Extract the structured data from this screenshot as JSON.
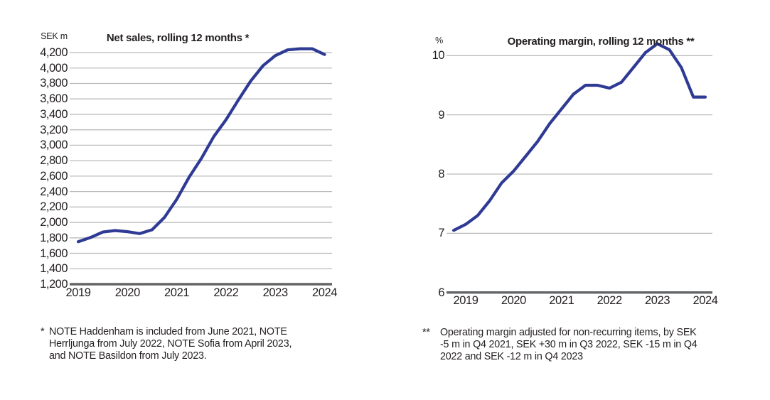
{
  "page": {
    "background": "#ffffff"
  },
  "chart_data": [
    {
      "type": "line",
      "title": "Net sales, rolling 12 months *",
      "grid": "horizontal",
      "legend_position": "none",
      "colors": {
        "line": "#2e3a94",
        "grid": "#babbbd",
        "axis": "#636466",
        "text": "#231f20"
      },
      "y_axis": {
        "unit": "SEK m",
        "min": 1200,
        "max": 4200,
        "step": 200,
        "tick_labels": [
          "4,200",
          "4,000",
          "3,800",
          "3,600",
          "3,400",
          "3,200",
          "3,000",
          "2,800",
          "2,600",
          "2,400",
          "2,200",
          "2,000",
          "1,800",
          "1,600",
          "1,400",
          "1,200"
        ]
      },
      "x_axis": {
        "tick_labels": [
          "2019",
          "2020",
          "2021",
          "2022",
          "2023",
          "2024"
        ]
      },
      "series": [
        {
          "name": "Net sales rolling 12 months (SEK m)",
          "x": [
            2019.0,
            2019.25,
            2019.5,
            2019.75,
            2020.0,
            2020.25,
            2020.5,
            2020.75,
            2021.0,
            2021.25,
            2021.5,
            2021.75,
            2022.0,
            2022.25,
            2022.5,
            2022.75,
            2023.0,
            2023.25,
            2023.5,
            2023.75,
            2024.0
          ],
          "y": [
            1750,
            1805,
            1875,
            1895,
            1880,
            1855,
            1905,
            2065,
            2300,
            2585,
            2830,
            3110,
            3330,
            3585,
            3830,
            4030,
            4160,
            4235,
            4250,
            4250,
            4175
          ]
        }
      ],
      "footnote": {
        "marker": "*",
        "lines": [
          "NOTE Haddenham is included from June 2021, NOTE",
          "Herrljunga from July 2022, NOTE Sofia from April 2023,",
          "and NOTE Basildon from July 2023."
        ]
      }
    },
    {
      "type": "line",
      "title": "Operating margin, rolling 12 months **",
      "grid": "horizontal",
      "legend_position": "none",
      "colors": {
        "line": "#2e3a94",
        "grid": "#babbbd",
        "axis": "#636466",
        "text": "#231f20"
      },
      "y_axis": {
        "unit": "%",
        "min": 6,
        "max": 10,
        "step": 1,
        "tick_labels": [
          "10",
          "9",
          "8",
          "7",
          "6"
        ]
      },
      "x_axis": {
        "tick_labels": [
          "2019",
          "2020",
          "2021",
          "2022",
          "2023",
          "2024"
        ]
      },
      "series": [
        {
          "name": "Operating margin rolling 12 months (%)",
          "x": [
            2018.75,
            2019.0,
            2019.25,
            2019.5,
            2019.75,
            2020.0,
            2020.25,
            2020.5,
            2020.75,
            2021.0,
            2021.25,
            2021.5,
            2021.75,
            2022.0,
            2022.25,
            2022.5,
            2022.75,
            2023.0,
            2023.25,
            2023.5,
            2023.75,
            2024.0
          ],
          "y": [
            7.05,
            7.15,
            7.3,
            7.55,
            7.85,
            8.05,
            8.3,
            8.55,
            8.85,
            9.1,
            9.35,
            9.5,
            9.5,
            9.45,
            9.55,
            9.8,
            10.05,
            10.2,
            10.1,
            9.8,
            9.3,
            9.3
          ]
        }
      ],
      "footnote": {
        "marker": "**",
        "lines": [
          "Operating margin adjusted for non-recurring items, by SEK",
          "-5 m in Q4 2021, SEK +30 m in Q3 2022, SEK -15 m in Q4",
          "2022 and SEK -12 m in Q4 2023"
        ]
      }
    }
  ]
}
